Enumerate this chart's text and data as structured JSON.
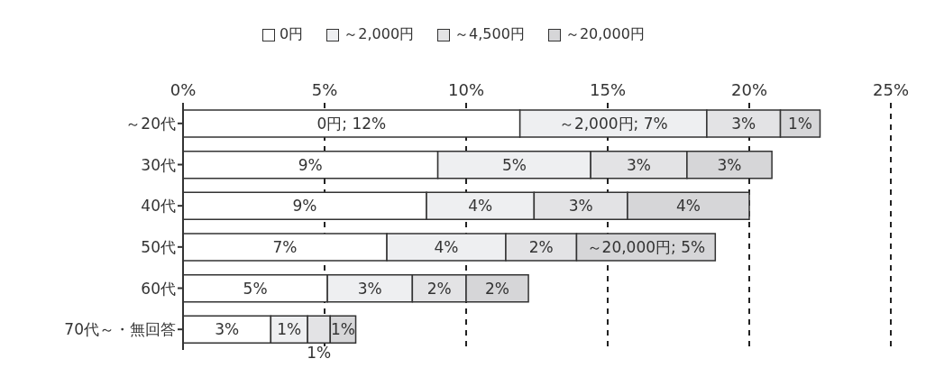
{
  "chart_data": {
    "type": "bar",
    "orientation": "horizontal",
    "stacked": true,
    "categories": [
      "～20代",
      "30代",
      "40代",
      "50代",
      "60代",
      "70代～・無回答"
    ],
    "series": [
      {
        "name": "0円",
        "color": "#ffffff",
        "values": [
          11.9,
          9.0,
          8.6,
          7.2,
          5.1,
          3.1
        ],
        "value_labels": [
          "0円; 12%",
          "9%",
          "9%",
          "7%",
          "5%",
          "3%"
        ]
      },
      {
        "name": "～2,000円",
        "color": "#eeeff1",
        "values": [
          6.6,
          5.4,
          3.8,
          4.2,
          3.0,
          1.3
        ],
        "value_labels": [
          "～2,000円; 7%",
          "5%",
          "4%",
          "4%",
          "3%",
          "1%"
        ]
      },
      {
        "name": "～4,500円",
        "color": "#e3e3e5",
        "values": [
          2.6,
          3.4,
          3.3,
          2.5,
          1.9,
          0.8
        ],
        "value_labels": [
          "3%",
          "3%",
          "3%",
          "2%",
          "2%",
          "1%"
        ]
      },
      {
        "name": "～20,000円",
        "color": "#d6d6d8",
        "values": [
          1.4,
          3.0,
          4.3,
          4.9,
          2.2,
          0.9
        ],
        "value_labels": [
          "1%",
          "3%",
          "4%",
          "～20,000円; 5%",
          "2%",
          "1%"
        ]
      }
    ],
    "xlim": [
      0,
      25
    ],
    "xticks": [
      {
        "value": 0,
        "label": "0%"
      },
      {
        "value": 5,
        "label": "5%"
      },
      {
        "value": 10,
        "label": "10%"
      },
      {
        "value": 15,
        "label": "15%"
      },
      {
        "value": 20,
        "label": "20%"
      },
      {
        "value": 25,
        "label": "25%"
      }
    ],
    "grid": "x",
    "legend": "top"
  }
}
